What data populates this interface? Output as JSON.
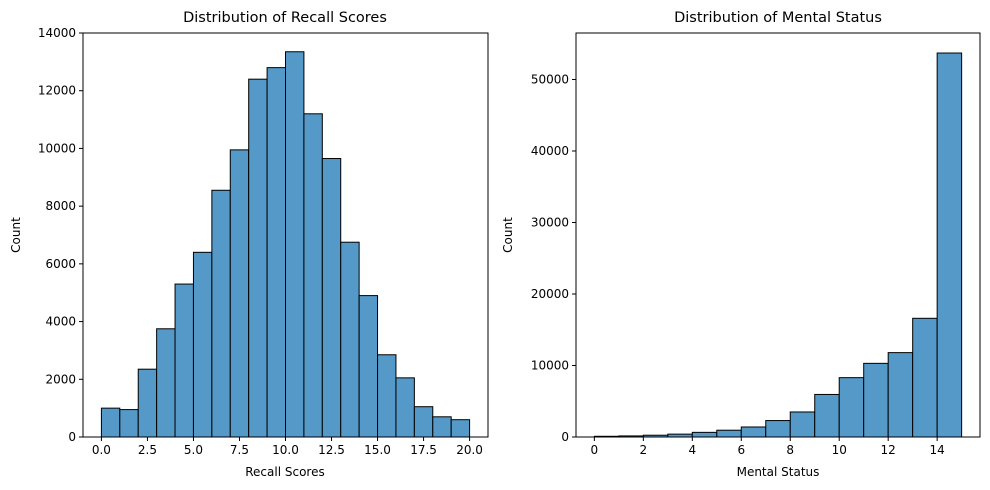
{
  "chart_data": [
    {
      "type": "bar",
      "title": "Distribution of Recall Scores",
      "xlabel": "Recall Scores",
      "ylabel": "Count",
      "xlim": [
        -1,
        21
      ],
      "ylim": [
        0,
        14000
      ],
      "xticks": [
        0.0,
        2.5,
        5.0,
        7.5,
        10.0,
        12.5,
        15.0,
        17.5,
        20.0
      ],
      "xtick_labels": [
        "0.0",
        "2.5",
        "5.0",
        "7.5",
        "10.0",
        "12.5",
        "15.0",
        "17.5",
        "20.0"
      ],
      "yticks": [
        0,
        2000,
        4000,
        6000,
        8000,
        10000,
        12000,
        14000
      ],
      "ytick_labels": [
        "0",
        "2000",
        "4000",
        "6000",
        "8000",
        "10000",
        "12000",
        "14000"
      ],
      "bin_edges": [
        0,
        1,
        2,
        3,
        4,
        5,
        6,
        7,
        8,
        9,
        10,
        11,
        12,
        13,
        14,
        15,
        16,
        17,
        18,
        19,
        20
      ],
      "values": [
        1000,
        950,
        2350,
        3750,
        5300,
        6400,
        8550,
        9950,
        12400,
        12800,
        13350,
        11200,
        9650,
        6750,
        4900,
        2850,
        2050,
        1050,
        700,
        600
      ],
      "bar_color": "#5499c7",
      "edge_color": "#000000",
      "grid": false
    },
    {
      "type": "bar",
      "title": "Distribution of Mental Status",
      "xlabel": "Mental Status",
      "ylabel": "Count",
      "xlim": [
        -0.75,
        15.75
      ],
      "ylim": [
        0,
        56500
      ],
      "xticks": [
        0,
        2,
        4,
        6,
        8,
        10,
        12,
        14
      ],
      "xtick_labels": [
        "0",
        "2",
        "4",
        "6",
        "8",
        "10",
        "12",
        "14"
      ],
      "yticks": [
        0,
        10000,
        20000,
        30000,
        40000,
        50000
      ],
      "ytick_labels": [
        "0",
        "10000",
        "20000",
        "30000",
        "40000",
        "50000"
      ],
      "bin_edges": [
        0,
        1,
        2,
        3,
        4,
        5,
        6,
        7,
        8,
        9,
        10,
        11,
        12,
        13,
        14,
        15
      ],
      "values": [
        100,
        150,
        250,
        400,
        650,
        950,
        1400,
        2300,
        3500,
        5950,
        8300,
        10300,
        11800,
        16600,
        53700
      ],
      "bar_color": "#5499c7",
      "edge_color": "#000000",
      "grid": false
    }
  ]
}
